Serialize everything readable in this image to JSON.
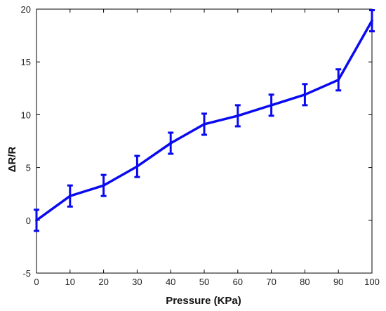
{
  "chart_data": {
    "type": "line",
    "title": "",
    "xlabel": "Pressure (KPa)",
    "ylabel": "ΔR/R",
    "xlim": [
      0,
      100
    ],
    "ylim": [
      -5,
      20
    ],
    "x_ticks": [
      0,
      10,
      20,
      30,
      40,
      50,
      60,
      70,
      80,
      90,
      100
    ],
    "y_ticks": [
      -5,
      0,
      5,
      10,
      15,
      20
    ],
    "grid": false,
    "error_bars": true,
    "series": [
      {
        "color": "#0a0af0",
        "x": [
          0,
          10,
          20,
          30,
          40,
          50,
          60,
          70,
          80,
          90,
          100
        ],
        "y": [
          0,
          2.3,
          3.3,
          5.1,
          7.3,
          9.1,
          9.9,
          10.9,
          11.9,
          13.3,
          18.9
        ],
        "error": [
          1.0,
          1.0,
          1.0,
          1.0,
          1.0,
          1.0,
          1.0,
          1.0,
          1.0,
          1.0,
          1.0
        ]
      }
    ]
  }
}
